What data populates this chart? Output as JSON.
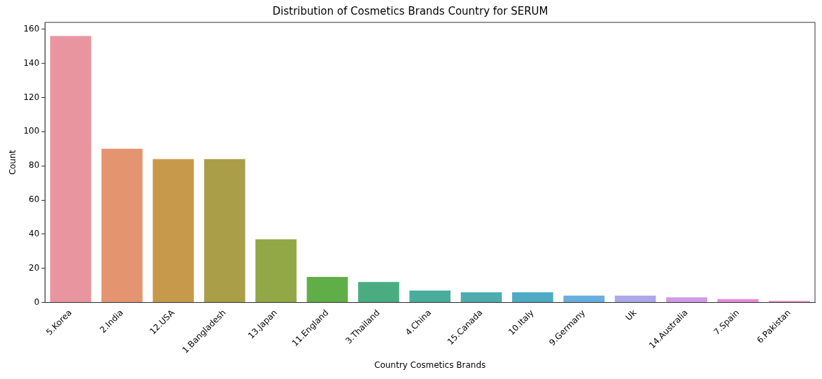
{
  "chart_data": {
    "type": "bar",
    "title": "Distribution of Cosmetics Brands Country for SERUM",
    "xlabel": "Country Cosmetics Brands",
    "ylabel": "Count",
    "categories": [
      "5.Korea",
      "2.India",
      "12.USA",
      "1.Bangladesh",
      "13.Japan",
      "11.England",
      "3.Thailand",
      "4.China",
      "15.Canada",
      "10.Italy",
      "9.Germany",
      "Uk",
      "14.Australia",
      "7.Spain",
      "6.Pakistan"
    ],
    "values": [
      156,
      90,
      84,
      84,
      37,
      15,
      12,
      7,
      6,
      6,
      4,
      4,
      3,
      2,
      1
    ],
    "colors": [
      "#e8959f",
      "#e4946f",
      "#c79a4b",
      "#ab9e48",
      "#92a746",
      "#60ae48",
      "#4aad82",
      "#4aad9c",
      "#4eacb0",
      "#4faac6",
      "#6aaee0",
      "#aca8ea",
      "#d09ae6",
      "#e68bd8",
      "#e892c0"
    ],
    "ylim": [
      0,
      164
    ],
    "yticks": [
      0,
      20,
      40,
      60,
      80,
      100,
      120,
      140,
      160
    ],
    "grid": false,
    "legend": false
  }
}
